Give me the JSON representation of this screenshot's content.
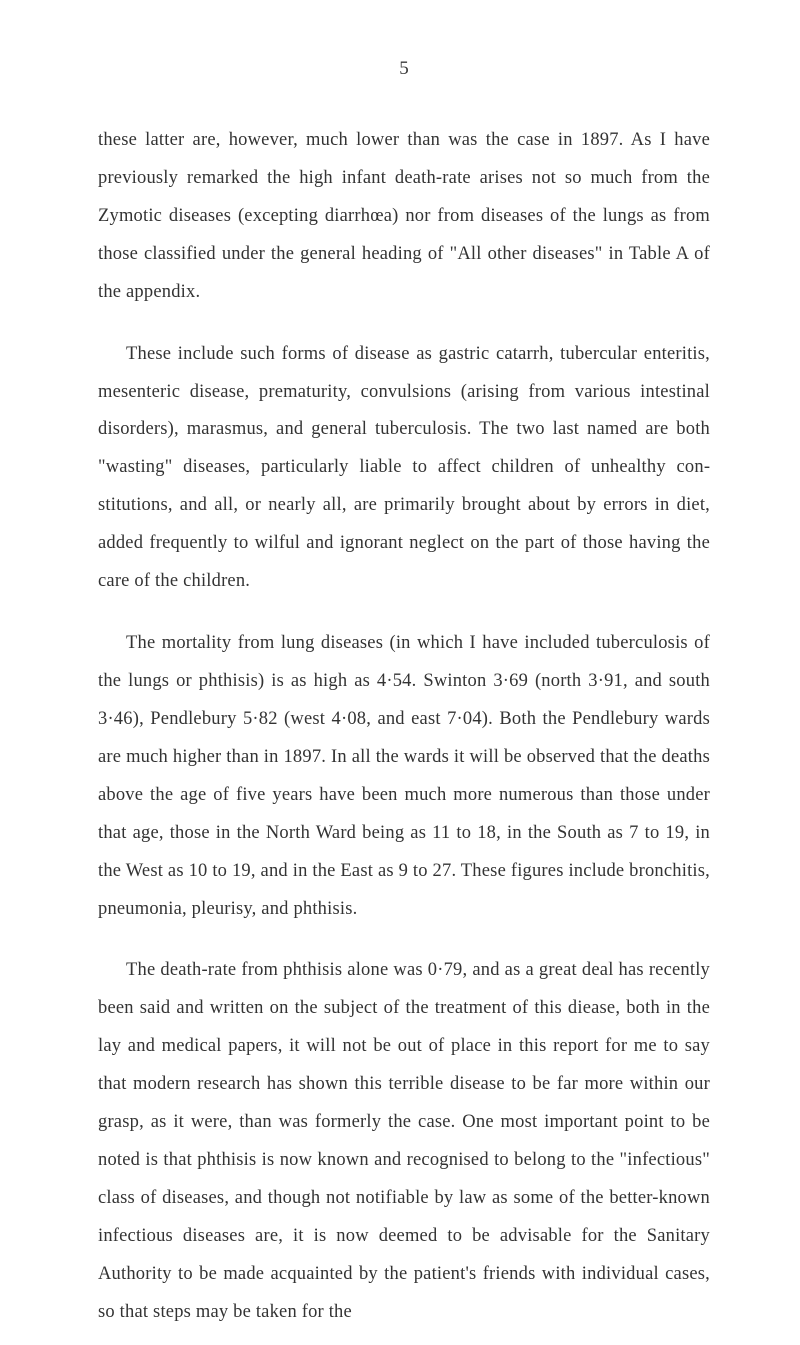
{
  "page": {
    "number": "5",
    "background_color": "#ffffff",
    "text_color": "#333333",
    "font_family": "Georgia, 'Times New Roman', serif",
    "body_fontsize": 18.5,
    "line_height": 2.05
  },
  "paragraphs": {
    "p1": "these latter are, however, much lower than was the case in 1897. As I have previously remarked the high infant death-rate arises not so much from the Zymotic diseases (excepting diarrhœa) nor from diseases of the lungs as from those classified under the general heading of \"All other diseases\" in Table A of the appendix.",
    "p2": "These include such forms of disease as gastric catarrh, tubercular enteritis, mesenteric disease, prematurity, convulsions (arising from various intestinal disorders), marasmus, and general tuberculosis. The two last named are both \"wasting\" diseases, particularly liable to affect children of unhealthy con­stitutions, and all, or nearly all, are primarily brought about by errors in diet, added frequently to wilful and ignorant neglect on the part of those having the care of the children.",
    "p3": "The mortality from lung diseases (in which I have included tuberculosis of the lungs or phthisis) is as high as 4·54. Swinton 3·69 (north 3·91, and south 3·46), Pendlebury 5·82 (west 4·08, and east 7·04). Both the Pendlebury wards are much higher than in 1897. In all the wards it will be observed that the deaths above the age of five years have been much more numerous than those under that age, those in the North Ward being as 11 to 18, in the South as 7 to 19, in the West as 10 to 19, and in the East as 9 to 27. These figures include bronchitis, pneumonia, pleurisy, and phthisis.",
    "p4": "The death-rate from phthisis alone was 0·79, and as a great deal has recently been said and written on the subject of the treatment of this diease, both in the lay and medical papers, it will not be out of place in this report for me to say that modern research has shown this terrible disease to be far more within our grasp, as it were, than was formerly the case. One most important point to be noted is that phthisis is now known and recognised to belong to the \"infectious\" class of diseases, and though not notifiable by law as some of the better-known infectious diseases are, it is now deemed to be advisable for the Sanitary Authority to be made acquainted by the patient's friends with individual cases, so that steps may be taken for the"
  }
}
